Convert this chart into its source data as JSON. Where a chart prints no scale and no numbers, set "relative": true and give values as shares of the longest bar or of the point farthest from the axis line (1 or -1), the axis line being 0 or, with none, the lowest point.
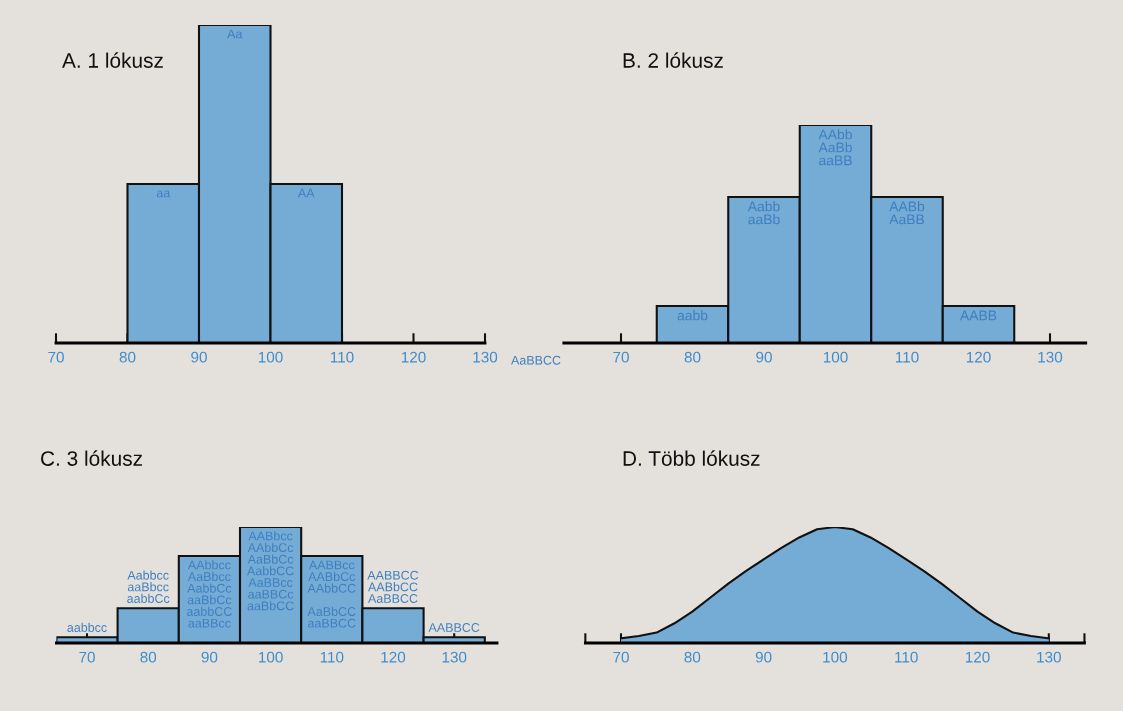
{
  "chart_data": [
    {
      "type": "bar",
      "title": "A. 1 lókusz",
      "relative": true,
      "x": [
        85,
        95,
        105
      ],
      "values": [
        0.5,
        1,
        0.5
      ],
      "color": "#74acd6",
      "annotations": [
        {
          "text": "aa",
          "x": 85,
          "y": 0.5
        },
        {
          "text": "Aa",
          "x": 95,
          "y": 1
        },
        {
          "text": "AA",
          "x": 105,
          "y": 0.5
        }
      ],
      "xlim": [
        70,
        130
      ],
      "xticks": [
        70,
        80,
        90,
        100,
        110,
        120,
        130
      ],
      "grid": false
    },
    {
      "type": "bar",
      "title": "B. 2 lókusz",
      "relative": true,
      "x": [
        80,
        90,
        100,
        110,
        120
      ],
      "values": [
        0.17,
        0.67,
        1,
        0.67,
        0.17
      ],
      "color": "#74acd6",
      "annotations": [
        {
          "text": "aabb",
          "x": 80,
          "y": 0.17
        },
        {
          "text": "Aabb\naaBb",
          "x": 90,
          "y": 0.67
        },
        {
          "text": "AAbb\nAaBb\naaBB",
          "x": 100,
          "y": 1
        },
        {
          "text": "AABb\nAaBB",
          "x": 110,
          "y": 0.67
        },
        {
          "text": "AABB",
          "x": 120,
          "y": 0.17
        },
        "AaBBCC"
      ],
      "xlim": [
        62,
        135
      ],
      "xticks": [
        70,
        80,
        90,
        100,
        110,
        120,
        130
      ],
      "grid": false
    },
    {
      "type": "bar",
      "title": "C. 3 lókusz",
      "relative": true,
      "x": [
        70,
        80,
        90,
        100,
        110,
        120,
        130
      ],
      "values": [
        0.05,
        0.3,
        0.75,
        1,
        0.75,
        0.3,
        0.05
      ],
      "color": "#74acd6",
      "annotations": [
        {
          "text": "aabbcc",
          "x": 70,
          "y": 0.05
        },
        {
          "text": "Aabbcc\naaBbcc\naabbCc",
          "x": 80,
          "y": 0.3
        },
        {
          "text": "AAbbcc\nAaBbcc\nAabbCc\naaBbCc\naabbCC\naaBBcc",
          "x": 90,
          "y": 0.75
        },
        {
          "text": "AABbcc\nAAbbCc\nAaBbCc\nAabbCC\nAaBBcc\naaBBCc\naaBbCC",
          "x": 100,
          "y": 1
        },
        {
          "text": "AABBcc\nAABbCc\nAAbbCC\n\nAaBbCC\naaBBCC",
          "x": 110,
          "y": 0.75
        },
        {
          "text": "AABBCC\nAABbCC\nAaBBCC",
          "x": 120,
          "y": 0.3
        },
        {
          "text": "AABBCC",
          "x": 130,
          "y": 0.05
        }
      ],
      "xlim": [
        65,
        137
      ],
      "xticks": [
        70,
        80,
        90,
        100,
        110,
        120,
        130
      ],
      "grid": false
    },
    {
      "type": "area",
      "title": "D. Több lókusz",
      "relative": true,
      "color": "#74acd6",
      "x": [
        70,
        72.5,
        75,
        77.5,
        80,
        82.5,
        85,
        87.5,
        90,
        92.5,
        95,
        97.5,
        100,
        102.5,
        105,
        107.5,
        110,
        112.5,
        115,
        117.5,
        120,
        122.5,
        125,
        127.5,
        130
      ],
      "values": [
        0.04,
        0.06,
        0.09,
        0.17,
        0.27,
        0.39,
        0.51,
        0.62,
        0.72,
        0.82,
        0.91,
        0.98,
        1,
        0.98,
        0.91,
        0.82,
        0.72,
        0.62,
        0.51,
        0.39,
        0.27,
        0.17,
        0.09,
        0.06,
        0.04
      ],
      "xlim": [
        65,
        135
      ],
      "xticks": [
        {
          "value": 65,
          "label": null
        },
        70,
        {
          "value": 75,
          "label": null
        },
        80,
        {
          "value": 85,
          "label": null
        },
        90,
        {
          "value": 95,
          "label": null
        },
        100,
        {
          "value": 105,
          "label": null
        },
        110,
        {
          "value": 115,
          "label": null
        },
        120,
        {
          "value": 125,
          "label": null
        },
        130,
        {
          "value": 135,
          "label": null
        }
      ],
      "grid": false
    }
  ]
}
